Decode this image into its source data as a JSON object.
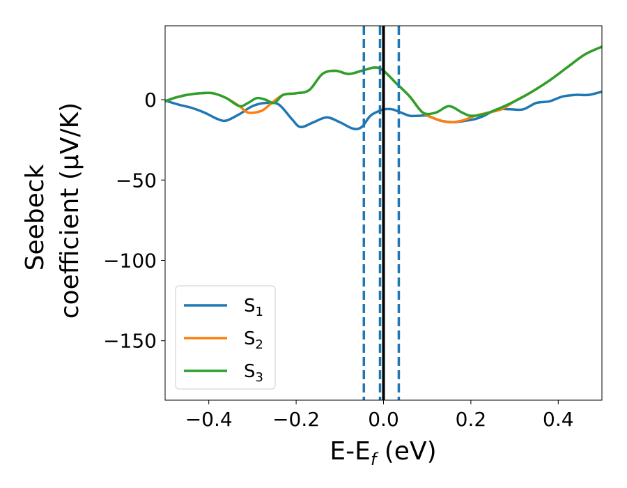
{
  "chart_data": {
    "type": "line",
    "xlabel": "E-E",
    "xlabel_sub": "f",
    "xlabel_unit": " (eV)",
    "ylabel_line1": "Seebeck",
    "ylabel_line2": "coefficient  (μV/K)",
    "xlim": [
      -0.5,
      0.5
    ],
    "ylim": [
      -187,
      46
    ],
    "xticks": [
      -0.4,
      -0.2,
      0.0,
      0.2,
      0.4
    ],
    "xtick_labels": [
      "−0.4",
      "−0.2",
      "0.0",
      "0.2",
      "0.4"
    ],
    "yticks": [
      0,
      -50,
      -100,
      -150
    ],
    "ytick_labels": [
      "0",
      "−50",
      "−100",
      "−150"
    ],
    "grid": false,
    "legend_placement": "lower-left",
    "series": [
      {
        "name": "S",
        "sub": "1",
        "color": "#1f77b4",
        "x": [
          -0.5,
          -0.47,
          -0.44,
          -0.41,
          -0.38,
          -0.36,
          -0.33,
          -0.3,
          -0.27,
          -0.24,
          -0.21,
          -0.19,
          -0.16,
          -0.13,
          -0.1,
          -0.07,
          -0.05,
          -0.03,
          -0.01,
          0.0,
          0.02,
          0.04,
          0.06,
          0.08,
          0.1,
          0.13,
          0.16,
          0.19,
          0.21,
          0.23,
          0.26,
          0.29,
          0.32,
          0.35,
          0.38,
          0.41,
          0.44,
          0.47,
          0.5
        ],
        "y": [
          -0.5,
          -3,
          -5,
          -8,
          -12,
          -13,
          -9,
          -4,
          -2,
          -3,
          -12,
          -17,
          -14,
          -11,
          -14,
          -18,
          -17,
          -10,
          -7,
          -6,
          -6,
          -8,
          -10,
          -10,
          -10,
          -13,
          -14,
          -13,
          -12,
          -10,
          -6,
          -6,
          -6,
          -2,
          -1,
          2,
          3,
          3,
          5
        ]
      },
      {
        "name": "S",
        "sub": "2",
        "color": "#ff7f0e",
        "x": [
          -0.5,
          -0.48,
          -0.45,
          -0.42,
          -0.39,
          -0.36,
          -0.33,
          -0.31,
          -0.28,
          -0.26,
          -0.23,
          -0.2,
          -0.17,
          -0.14,
          -0.11,
          -0.08,
          -0.05,
          -0.02,
          0.0,
          0.03,
          0.06,
          0.09,
          0.12,
          0.15,
          0.18,
          0.21,
          0.24,
          0.27,
          0.3,
          0.34,
          0.38,
          0.42,
          0.46,
          0.5
        ],
        "y": [
          -1,
          1,
          3,
          4,
          4,
          1,
          -4,
          -8,
          -7,
          -3,
          3,
          4,
          6,
          16,
          18,
          16,
          18,
          20,
          18,
          10,
          2,
          -8,
          -12,
          -14,
          -13,
          -10,
          -8,
          -6,
          -1,
          5,
          12,
          20,
          28,
          33
        ]
      },
      {
        "name": "S",
        "sub": "3",
        "color": "#2ca02c",
        "x": [
          -0.5,
          -0.48,
          -0.45,
          -0.42,
          -0.39,
          -0.36,
          -0.33,
          -0.31,
          -0.29,
          -0.27,
          -0.25,
          -0.23,
          -0.2,
          -0.17,
          -0.14,
          -0.11,
          -0.08,
          -0.05,
          -0.02,
          0.0,
          0.03,
          0.06,
          0.09,
          0.12,
          0.15,
          0.18,
          0.2,
          0.23,
          0.26,
          0.3,
          0.34,
          0.38,
          0.42,
          0.46,
          0.5
        ],
        "y": [
          -1,
          1,
          3,
          4,
          4,
          1,
          -4,
          -2,
          1,
          0,
          -2,
          3,
          4,
          6,
          16,
          18,
          16,
          18,
          20,
          18,
          10,
          2,
          -8,
          -8,
          -4,
          -8,
          -10,
          -9,
          -6,
          -1,
          5,
          12,
          20,
          28,
          33
        ]
      }
    ],
    "vlines": [
      {
        "x": -0.045,
        "style": "dashed",
        "color": "#1f77b4"
      },
      {
        "x": -0.008,
        "style": "dashed",
        "color": "#1f77b4"
      },
      {
        "x": 0.035,
        "style": "dashed",
        "color": "#1f77b4"
      },
      {
        "x": 0.0,
        "style": "solid",
        "color": "#000000"
      }
    ]
  }
}
